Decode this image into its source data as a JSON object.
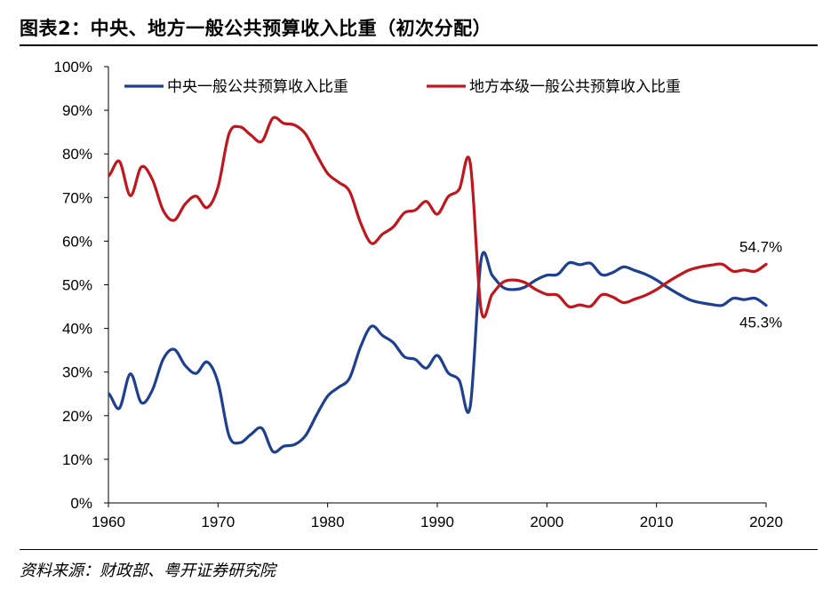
{
  "figure": {
    "title": "图表2：中央、地方一般公共预算收入比重（初次分配）",
    "source": "资料来源：财政部、粤开证券研究院"
  },
  "chart_data": {
    "type": "line",
    "title": "",
    "xlabel": "",
    "ylabel": "",
    "xlim": [
      1960,
      2020
    ],
    "ylim": [
      0,
      100
    ],
    "x_ticks": [
      "1960",
      "1970",
      "1980",
      "1990",
      "2000",
      "2010",
      "2020"
    ],
    "y_ticks": [
      "0%",
      "10%",
      "20%",
      "30%",
      "40%",
      "50%",
      "60%",
      "70%",
      "80%",
      "90%",
      "100%"
    ],
    "grid": false,
    "legend_position": "top",
    "x": [
      1959,
      1960,
      1961,
      1962,
      1963,
      1964,
      1965,
      1966,
      1967,
      1968,
      1969,
      1970,
      1971,
      1972,
      1973,
      1974,
      1975,
      1976,
      1977,
      1978,
      1979,
      1980,
      1981,
      1982,
      1983,
      1984,
      1985,
      1986,
      1987,
      1988,
      1989,
      1990,
      1991,
      1992,
      1993,
      1994,
      1995,
      1996,
      1997,
      1998,
      1999,
      2000,
      2001,
      2002,
      2003,
      2004,
      2005,
      2006,
      2007,
      2008,
      2009,
      2010,
      2011,
      2012,
      2013,
      2014,
      2015,
      2016,
      2017,
      2018,
      2019,
      2020
    ],
    "series": [
      {
        "name": "中央一般公共预算收入比重",
        "color": "#1f3f8f",
        "values": [
          24.4,
          25.1,
          21.7,
          29.6,
          23.0,
          25.8,
          33.0,
          35.2,
          31.5,
          29.7,
          32.3,
          27.6,
          15.4,
          13.8,
          15.7,
          17.1,
          11.8,
          13.0,
          13.4,
          15.5,
          20.2,
          24.5,
          26.5,
          28.6,
          35.8,
          40.5,
          38.4,
          36.7,
          33.5,
          32.9,
          30.9,
          33.8,
          29.8,
          28.1,
          22.0,
          55.7,
          52.2,
          49.4,
          48.9,
          49.5,
          51.1,
          52.2,
          52.4,
          55.0,
          54.6,
          54.9,
          52.3,
          52.8,
          54.1,
          53.3,
          52.4,
          51.1,
          49.4,
          47.9,
          46.6,
          45.9,
          45.5,
          45.3,
          46.9,
          46.6,
          46.9,
          45.3
        ]
      },
      {
        "name": "地方本级一般公共预算收入比重",
        "color": "#c0171f",
        "values": [
          75.6,
          74.9,
          78.3,
          70.4,
          77.0,
          74.2,
          67.0,
          64.8,
          68.5,
          70.3,
          67.7,
          72.4,
          84.6,
          86.2,
          84.3,
          82.9,
          88.2,
          87.0,
          86.6,
          84.5,
          79.8,
          75.5,
          73.5,
          71.4,
          64.2,
          59.5,
          61.6,
          63.3,
          66.5,
          67.1,
          69.1,
          66.2,
          70.2,
          71.9,
          78.0,
          44.3,
          47.8,
          50.6,
          51.1,
          50.5,
          48.9,
          47.8,
          47.6,
          45.0,
          45.4,
          45.1,
          47.7,
          47.2,
          45.9,
          46.7,
          47.6,
          48.9,
          50.6,
          52.1,
          53.4,
          54.1,
          54.5,
          54.7,
          53.1,
          53.4,
          53.1,
          54.7
        ]
      }
    ],
    "annotations": [
      {
        "text": "54.7%",
        "series": 1,
        "x": 2020
      },
      {
        "text": "45.3%",
        "series": 0,
        "x": 2020
      }
    ]
  }
}
